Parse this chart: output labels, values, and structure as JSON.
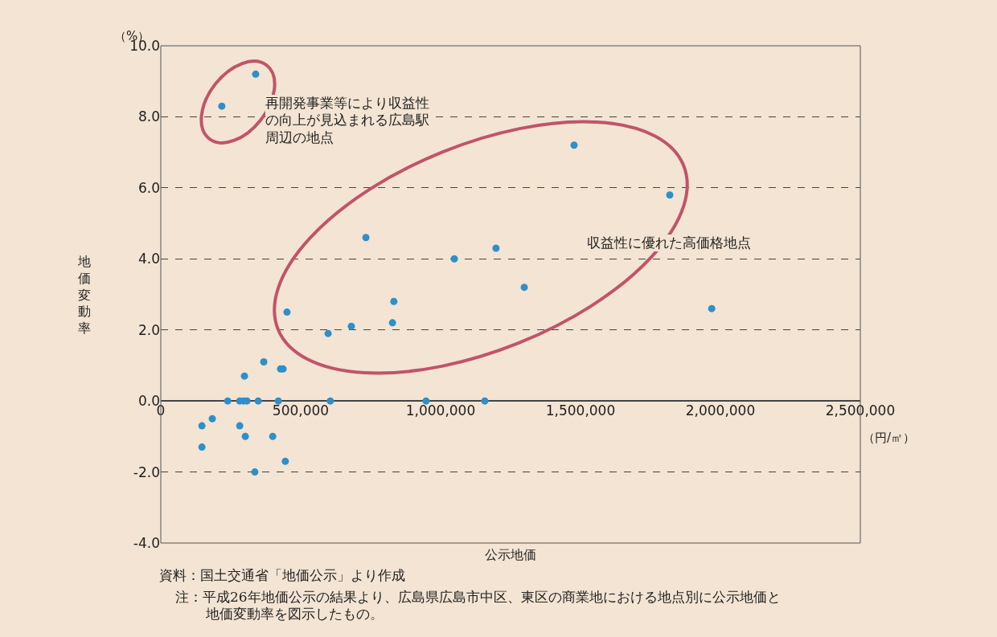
{
  "chart_data": {
    "type": "scatter",
    "xlabel": "公示地価",
    "ylabel": "地価変動率",
    "x": [
      218000,
      339000,
      1477000,
      1819000,
      733000,
      1049000,
      1198000,
      1299000,
      1969000,
      451000,
      833000,
      828000,
      681000,
      598000,
      368000,
      428000,
      437000,
      299000,
      239000,
      282000,
      296000,
      308000,
      348000,
      420000,
      606000,
      948000,
      1158000,
      147000,
      184000,
      147000,
      282000,
      302000,
      400000,
      445000,
      336000
    ],
    "series": [
      {
        "color": "#2e8fc9",
        "values": [
          8.3,
          9.2,
          7.2,
          5.8,
          4.6,
          4.0,
          4.3,
          3.2,
          2.6,
          2.5,
          2.8,
          2.2,
          2.1,
          1.9,
          1.1,
          0.9,
          0.9,
          0.7,
          0,
          0,
          0,
          0,
          0,
          0,
          0,
          0,
          0,
          -0.7,
          -0.5,
          -1.3,
          -0.7,
          -1.0,
          -1.0,
          -1.7,
          -2.0
        ]
      }
    ],
    "xlim": [
      0,
      2500000
    ],
    "xticks": [
      {
        "value": 0,
        "label": "0"
      },
      {
        "value": 500000,
        "label": "500,000"
      },
      {
        "value": 1000000,
        "label": "1,000,000"
      },
      {
        "value": 1500000,
        "label": "1,500,000"
      },
      {
        "value": 2000000,
        "label": "2,000,000"
      },
      {
        "value": 2500000,
        "label": "2,500,000"
      }
    ],
    "ylim": [
      -4,
      10
    ],
    "yticks": [
      {
        "value": -4,
        "label": "-4.0"
      },
      {
        "value": -2,
        "label": "-2.0"
      },
      {
        "value": 0,
        "label": "0.0"
      },
      {
        "value": 2,
        "label": "2.0"
      },
      {
        "value": 4,
        "label": "4.0"
      },
      {
        "value": 6,
        "label": "6.0"
      },
      {
        "value": 8,
        "label": "8.0"
      },
      {
        "value": 10,
        "label": "10.0"
      }
    ],
    "grid": "y",
    "marker": "circle",
    "annotations": [
      "再開発事業等により収益性の向上が見込まれる広島駅周辺の地点",
      "収益性に優れた高価格地点",
      "（%）",
      "（円/㎡）",
      "資料：国土交通省「地価公示」より作成",
      "注：平成26年地価公示の結果より、広島県広島市中区、東区の商業地における地点別に公示地価と地価変動率を図示したもの。"
    ]
  }
}
